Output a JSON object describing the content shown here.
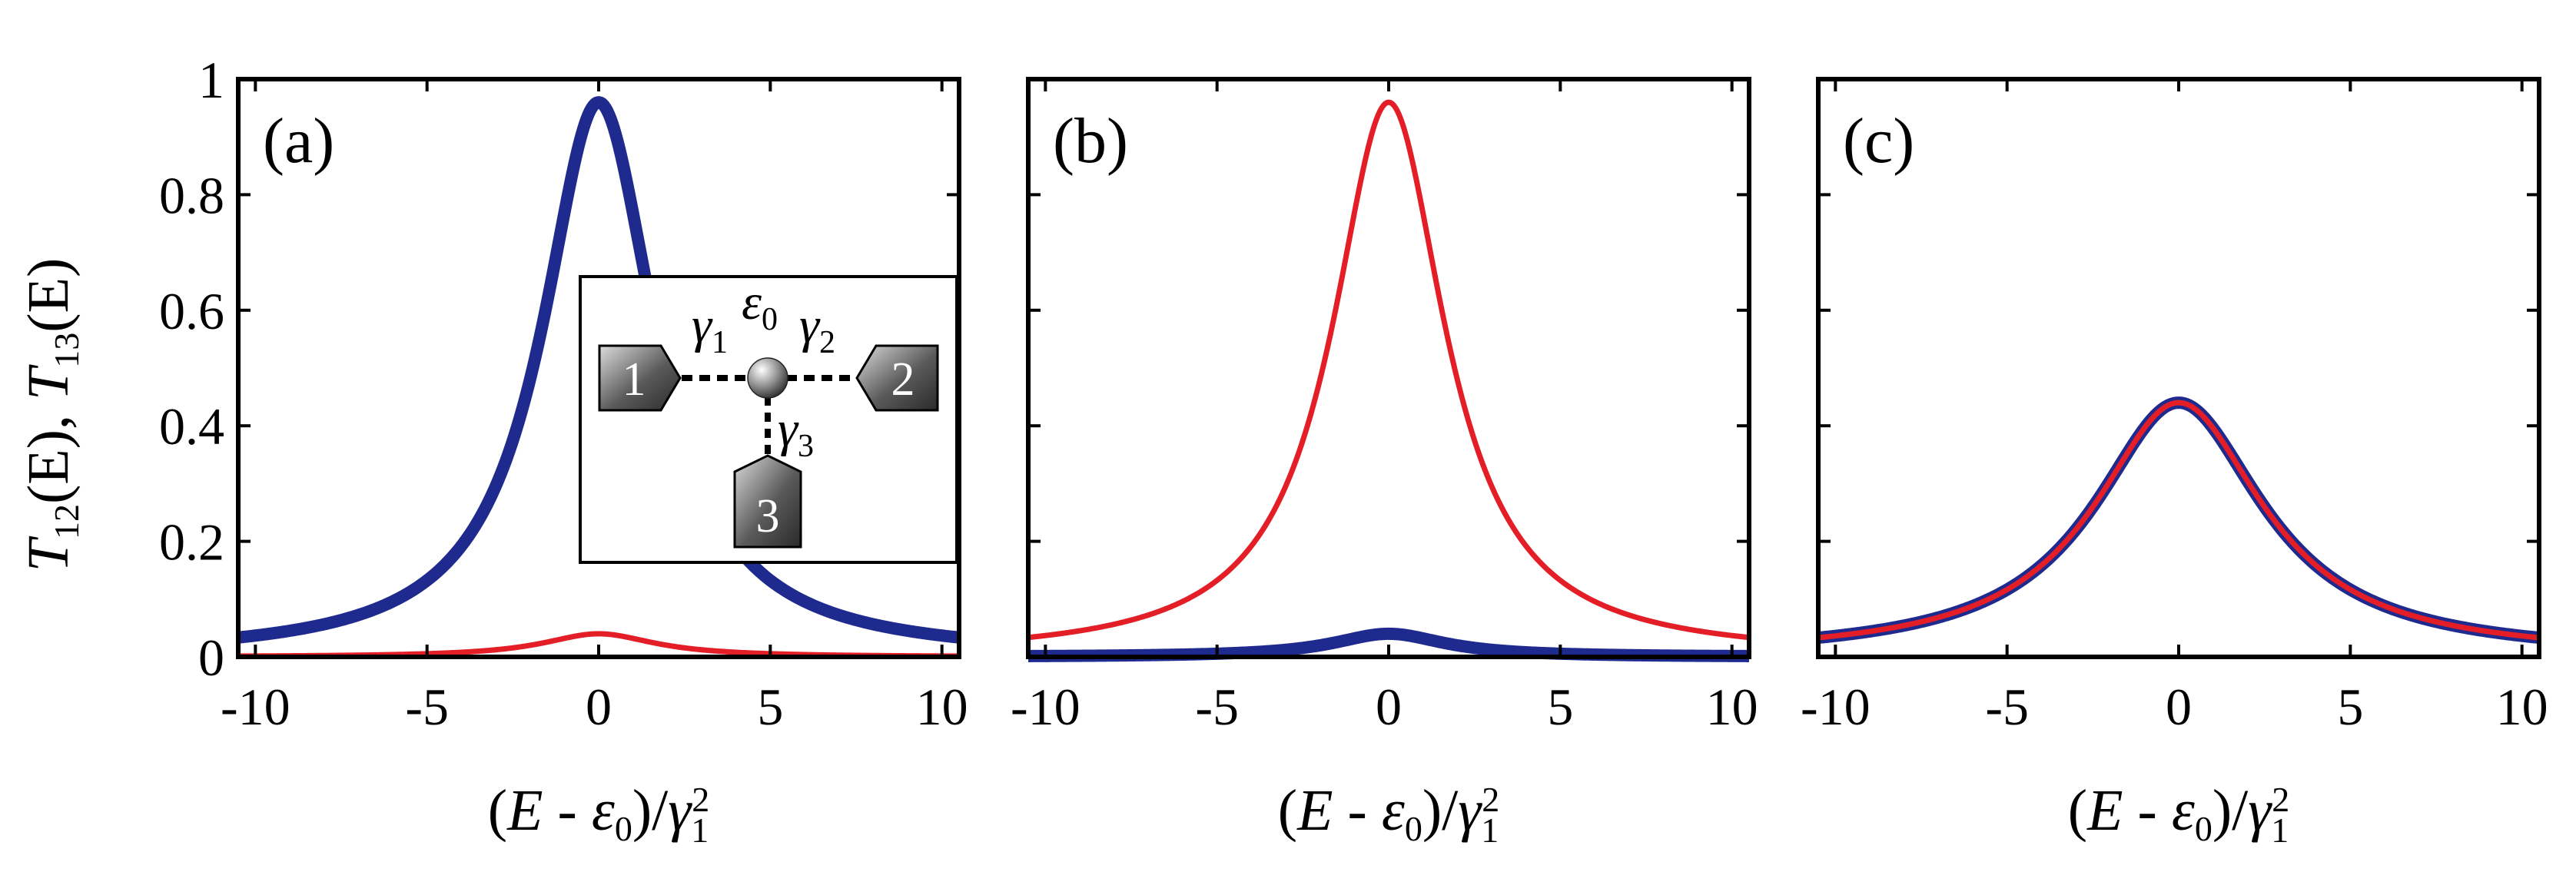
{
  "colors": {
    "blue": "#1f2a8f",
    "red": "#e41e26",
    "axis": "#000000",
    "lead_dark": "#3a3a3a",
    "lead_light": "#dcdcdc"
  },
  "y_axis": {
    "label_T12": "T",
    "label_sub12": "12",
    "label_E1": "(E)",
    "label_sep": ", ",
    "label_T13": "T",
    "label_sub13": "13",
    "label_E2": "(E)"
  },
  "x_axis": {
    "label_open": "(",
    "label_E": "E",
    "label_minus": " - ",
    "label_eps": "ε",
    "label_eps_sub": "0",
    "label_close": ")/",
    "label_gamma": "γ",
    "label_gamma_sub": "1",
    "label_gamma_sup": "2"
  },
  "inset": {
    "lead1": "1",
    "lead2": "2",
    "lead3": "3",
    "gamma": "γ",
    "sub1": "1",
    "sub2": "2",
    "sub3": "3",
    "epsilon": "ε",
    "eps_sub": "0"
  },
  "chart_data": [
    {
      "type": "line",
      "panel_label": "(a)",
      "xlim": [
        -10.5,
        10.5
      ],
      "ylim": [
        0,
        1
      ],
      "xticks": [
        -10,
        -5,
        0,
        5,
        10
      ],
      "xtick_labels": [
        "-10",
        "-5",
        "0",
        "5",
        "10"
      ],
      "yticks": [
        0,
        0.2,
        0.4,
        0.6,
        0.8,
        1
      ],
      "ytick_labels": [
        "0",
        "0.2",
        "0.4",
        "0.6",
        "0.8",
        "1"
      ],
      "series": [
        {
          "name": "T12",
          "color": "blue",
          "width": "thick",
          "peak": 0.96,
          "halfwidth": 2.0
        },
        {
          "name": "T13",
          "color": "red",
          "width": "thin",
          "peak": 0.04,
          "halfwidth": 2.0
        }
      ]
    },
    {
      "type": "line",
      "panel_label": "(b)",
      "xlim": [
        -10.5,
        10.5
      ],
      "ylim": [
        0,
        1
      ],
      "xticks": [
        -10,
        -5,
        0,
        5,
        10
      ],
      "xtick_labels": [
        "-10",
        "-5",
        "0",
        "5",
        "10"
      ],
      "yticks": [
        0,
        0.2,
        0.4,
        0.6,
        0.8,
        1
      ],
      "series": [
        {
          "name": "T12",
          "color": "blue",
          "width": "thick",
          "peak": 0.04,
          "halfwidth": 2.0
        },
        {
          "name": "T13",
          "color": "red",
          "width": "thin",
          "peak": 0.96,
          "halfwidth": 2.0
        }
      ]
    },
    {
      "type": "line",
      "panel_label": "(c)",
      "xlim": [
        -10.5,
        10.5
      ],
      "ylim": [
        0,
        1
      ],
      "xticks": [
        -10,
        -5,
        0,
        5,
        10
      ],
      "xtick_labels": [
        "-10",
        "-5",
        "0",
        "5",
        "10"
      ],
      "yticks": [
        0,
        0.2,
        0.4,
        0.6,
        0.8,
        1
      ],
      "series": [
        {
          "name": "T12",
          "color": "blue",
          "width": "thick",
          "peak": 0.44,
          "halfwidth": 3.0
        },
        {
          "name": "T13",
          "color": "red",
          "width": "thin",
          "peak": 0.44,
          "halfwidth": 3.0
        }
      ]
    }
  ]
}
